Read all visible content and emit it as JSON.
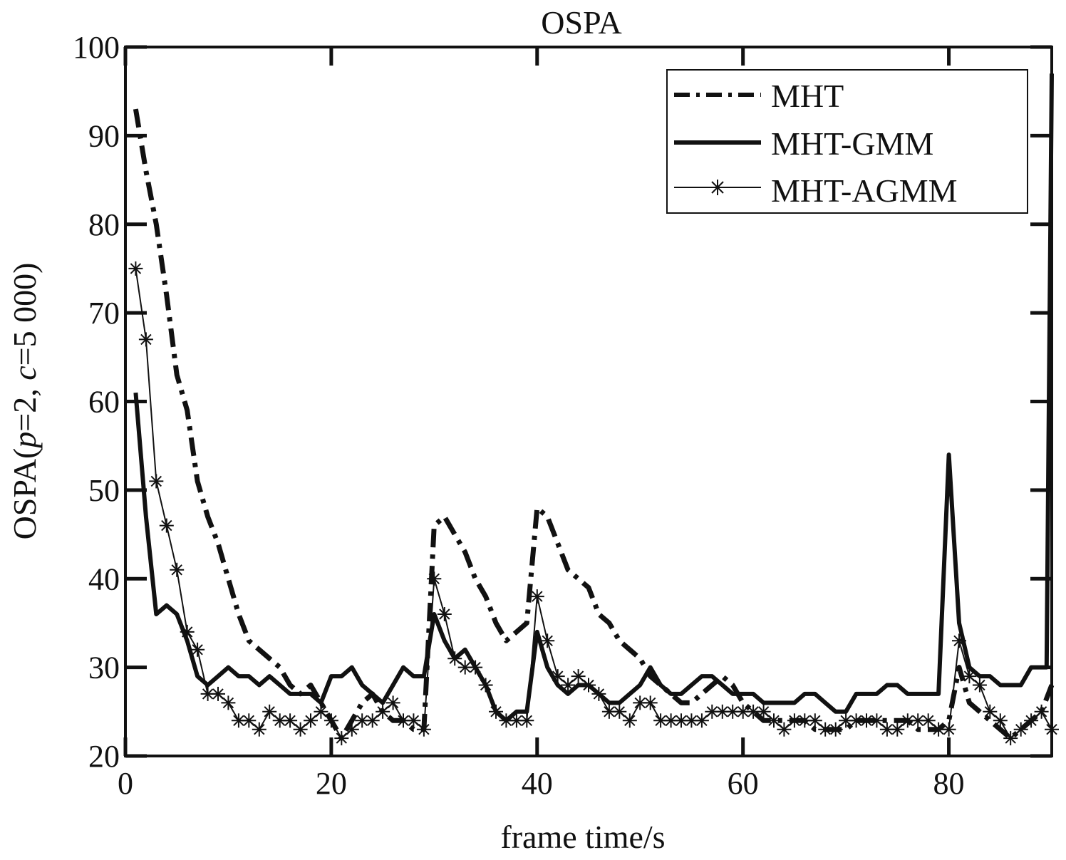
{
  "chart_data": {
    "type": "line",
    "title": "OSPA",
    "xlabel": "frame time/s",
    "ylabel": {
      "prefix": "OSPA(",
      "p_symbol": "p",
      "middle": "=2, ",
      "c_symbol": "c",
      "suffix": "=5 000)"
    },
    "xlim": [
      0,
      90
    ],
    "ylim": [
      20,
      100
    ],
    "xticks": [
      0,
      20,
      40,
      60,
      80
    ],
    "yticks": [
      20,
      30,
      40,
      50,
      60,
      70,
      80,
      90,
      100
    ],
    "legend_position": "top-right",
    "series": [
      {
        "name": "MHT",
        "style": "dashed",
        "x": [
          1,
          2,
          3,
          4,
          5,
          6,
          7,
          8,
          9,
          10,
          11,
          12,
          13,
          14,
          15,
          16,
          17,
          18,
          19,
          20,
          21,
          22,
          23,
          24,
          25,
          26,
          27,
          28,
          29,
          30,
          31,
          32,
          33,
          34,
          35,
          36,
          37,
          38,
          39,
          40,
          41,
          42,
          43,
          44,
          45,
          46,
          47,
          48,
          49,
          50,
          51,
          52,
          53,
          54,
          55,
          56,
          57,
          58,
          59,
          60,
          61,
          62,
          63,
          64,
          65,
          66,
          67,
          68,
          69,
          70,
          71,
          72,
          73,
          74,
          75,
          76,
          77,
          78,
          79,
          80,
          81,
          82,
          83,
          84,
          85,
          86,
          87,
          88,
          89,
          90
        ],
        "values": [
          93,
          86,
          80,
          72,
          63,
          59,
          51,
          47,
          44,
          40,
          36,
          33,
          32,
          31,
          30,
          28,
          27,
          28,
          26,
          24,
          22,
          24,
          26,
          27,
          25,
          24,
          24,
          23,
          23,
          46,
          47,
          45,
          43,
          40,
          38,
          35,
          33,
          34,
          35,
          48,
          47,
          44,
          41,
          40,
          39,
          36,
          35,
          33,
          32,
          31,
          29,
          28,
          27,
          26,
          26,
          27,
          28,
          29,
          28,
          26,
          25,
          24,
          24,
          24,
          24,
          24,
          23,
          23,
          23,
          23,
          24,
          24,
          24,
          24,
          24,
          24,
          23,
          23,
          23,
          24,
          30,
          26,
          25,
          24,
          23,
          22,
          23,
          24,
          25,
          28
        ]
      },
      {
        "name": "MHT-GMM",
        "style": "solid-thick",
        "x": [
          1,
          2,
          3,
          4,
          5,
          6,
          7,
          8,
          9,
          10,
          11,
          12,
          13,
          14,
          15,
          16,
          17,
          18,
          19,
          20,
          21,
          22,
          23,
          24,
          25,
          26,
          27,
          28,
          29,
          30,
          31,
          32,
          33,
          34,
          35,
          36,
          37,
          38,
          39,
          40,
          41,
          42,
          43,
          44,
          45,
          46,
          47,
          48,
          49,
          50,
          51,
          52,
          53,
          54,
          55,
          56,
          57,
          58,
          59,
          60,
          61,
          62,
          63,
          64,
          65,
          66,
          67,
          68,
          69,
          70,
          71,
          72,
          73,
          74,
          75,
          76,
          77,
          78,
          79,
          80,
          81,
          82,
          83,
          84,
          85,
          86,
          87,
          88,
          89,
          89.5,
          90
        ],
        "values": [
          61,
          47,
          36,
          37,
          36,
          33,
          29,
          28,
          29,
          30,
          29,
          29,
          28,
          29,
          28,
          27,
          27,
          27,
          26,
          29,
          29,
          30,
          28,
          27,
          26,
          28,
          30,
          29,
          29,
          36,
          33,
          31,
          32,
          30,
          28,
          25,
          24,
          25,
          25,
          34,
          30,
          28,
          27,
          28,
          28,
          27,
          26,
          26,
          27,
          28,
          30,
          28,
          27,
          27,
          28,
          29,
          29,
          28,
          27,
          27,
          27,
          26,
          26,
          26,
          26,
          27,
          27,
          26,
          25,
          25,
          27,
          27,
          27,
          28,
          28,
          27,
          27,
          27,
          27,
          54,
          35,
          30,
          29,
          29,
          28,
          28,
          28,
          30,
          30,
          30,
          97
        ]
      },
      {
        "name": "MHT-AGMM",
        "style": "thin-star",
        "x": [
          1,
          2,
          3,
          4,
          5,
          6,
          7,
          8,
          9,
          10,
          11,
          12,
          13,
          14,
          15,
          16,
          17,
          18,
          19,
          20,
          21,
          22,
          23,
          24,
          25,
          26,
          27,
          28,
          29,
          30,
          31,
          32,
          33,
          34,
          35,
          36,
          37,
          38,
          39,
          40,
          41,
          42,
          43,
          44,
          45,
          46,
          47,
          48,
          49,
          50,
          51,
          52,
          53,
          54,
          55,
          56,
          57,
          58,
          59,
          60,
          61,
          62,
          63,
          64,
          65,
          66,
          67,
          68,
          69,
          70,
          71,
          72,
          73,
          74,
          75,
          76,
          77,
          78,
          79,
          80,
          81,
          82,
          83,
          84,
          85,
          86,
          87,
          88,
          89,
          90
        ],
        "values": [
          75,
          67,
          51,
          46,
          41,
          34,
          32,
          27,
          27,
          26,
          24,
          24,
          23,
          25,
          24,
          24,
          23,
          24,
          25,
          24,
          22,
          23,
          24,
          24,
          25,
          26,
          24,
          24,
          23,
          40,
          36,
          31,
          30,
          30,
          28,
          25,
          24,
          24,
          24,
          38,
          33,
          29,
          28,
          29,
          28,
          27,
          25,
          25,
          24,
          26,
          26,
          24,
          24,
          24,
          24,
          24,
          25,
          25,
          25,
          25,
          25,
          25,
          24,
          23,
          24,
          24,
          24,
          23,
          23,
          24,
          24,
          24,
          24,
          23,
          23,
          24,
          24,
          24,
          23,
          23,
          33,
          29,
          28,
          25,
          24,
          22,
          23,
          24,
          25,
          23
        ]
      }
    ]
  }
}
